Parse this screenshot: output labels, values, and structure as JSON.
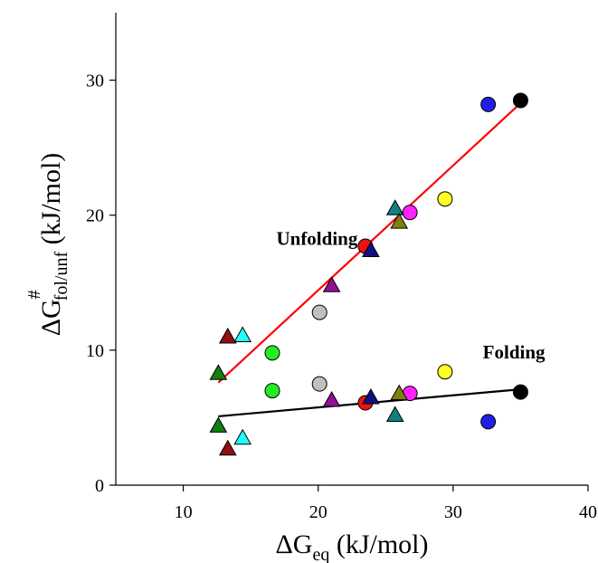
{
  "chart_data": {
    "type": "scatter",
    "xlabel": {
      "main": "ΔG",
      "sub": "eq",
      "rest": " (kJ/mol)"
    },
    "ylabel": {
      "main": "ΔG",
      "sup": "#",
      "sub": "fol/unf",
      "rest": " (kJ/mol)"
    },
    "xlim": [
      5,
      40
    ],
    "ylim": [
      0,
      35
    ],
    "xticks": [
      10,
      20,
      30,
      40
    ],
    "yticks": [
      0,
      10,
      20,
      30
    ],
    "grid": false,
    "annotations": [
      {
        "text": "Unfolding",
        "x": 16.9,
        "y": 17.8
      },
      {
        "text": "Folding",
        "x": 32.2,
        "y": 9.4
      }
    ],
    "series": [
      {
        "group": "unfolding",
        "points": [
          {
            "x": 32.6,
            "y": 28.2,
            "shape": "circle",
            "color": "#1f1fe6"
          },
          {
            "x": 35.0,
            "y": 28.5,
            "shape": "circle",
            "color": "#000000"
          },
          {
            "x": 29.4,
            "y": 21.2,
            "shape": "circle",
            "color": "#ffff22"
          },
          {
            "x": 26.8,
            "y": 20.2,
            "shape": "circle",
            "color": "#ff22ff"
          },
          {
            "x": 23.5,
            "y": 17.7,
            "shape": "circle",
            "color": "#ee1111"
          },
          {
            "x": 20.1,
            "y": 12.8,
            "shape": "circle",
            "color": "#c0c0c0"
          },
          {
            "x": 16.6,
            "y": 9.8,
            "shape": "circle",
            "color": "#22ee22"
          },
          {
            "x": 25.7,
            "y": 20.5,
            "shape": "triangle",
            "color": "#108080"
          },
          {
            "x": 26.0,
            "y": 19.5,
            "shape": "triangle",
            "color": "#808010"
          },
          {
            "x": 23.9,
            "y": 17.4,
            "shape": "triangle",
            "color": "#101080"
          },
          {
            "x": 21.0,
            "y": 14.8,
            "shape": "triangle",
            "color": "#901090"
          },
          {
            "x": 14.4,
            "y": 11.1,
            "shape": "triangle",
            "color": "#22ffff"
          },
          {
            "x": 13.3,
            "y": 11.0,
            "shape": "triangle",
            "color": "#901010"
          },
          {
            "x": 12.6,
            "y": 8.3,
            "shape": "triangle",
            "color": "#108010"
          }
        ],
        "fit": {
          "x": [
            12.6,
            35.0
          ],
          "y": [
            7.6,
            28.3
          ],
          "color": "#ff0000"
        }
      },
      {
        "group": "folding",
        "points": [
          {
            "x": 35.0,
            "y": 6.9,
            "shape": "circle",
            "color": "#000000"
          },
          {
            "x": 32.6,
            "y": 4.7,
            "shape": "circle",
            "color": "#1f1fe6"
          },
          {
            "x": 29.4,
            "y": 8.4,
            "shape": "circle",
            "color": "#ffff22"
          },
          {
            "x": 26.8,
            "y": 6.8,
            "shape": "circle",
            "color": "#ff22ff"
          },
          {
            "x": 23.5,
            "y": 6.1,
            "shape": "circle",
            "color": "#ee1111"
          },
          {
            "x": 20.1,
            "y": 7.5,
            "shape": "circle",
            "color": "#c0c0c0"
          },
          {
            "x": 16.6,
            "y": 7.0,
            "shape": "circle",
            "color": "#22ee22"
          },
          {
            "x": 26.0,
            "y": 6.8,
            "shape": "triangle",
            "color": "#808010"
          },
          {
            "x": 25.7,
            "y": 5.2,
            "shape": "triangle",
            "color": "#108080"
          },
          {
            "x": 23.9,
            "y": 6.5,
            "shape": "triangle",
            "color": "#101080"
          },
          {
            "x": 21.0,
            "y": 6.3,
            "shape": "triangle",
            "color": "#901090"
          },
          {
            "x": 14.4,
            "y": 3.5,
            "shape": "triangle",
            "color": "#22ffff"
          },
          {
            "x": 13.3,
            "y": 2.7,
            "shape": "triangle",
            "color": "#901010"
          },
          {
            "x": 12.6,
            "y": 4.4,
            "shape": "triangle",
            "color": "#108010"
          }
        ],
        "fit": {
          "x": [
            12.6,
            35.0
          ],
          "y": [
            5.1,
            7.1
          ],
          "color": "#000000"
        }
      }
    ]
  }
}
